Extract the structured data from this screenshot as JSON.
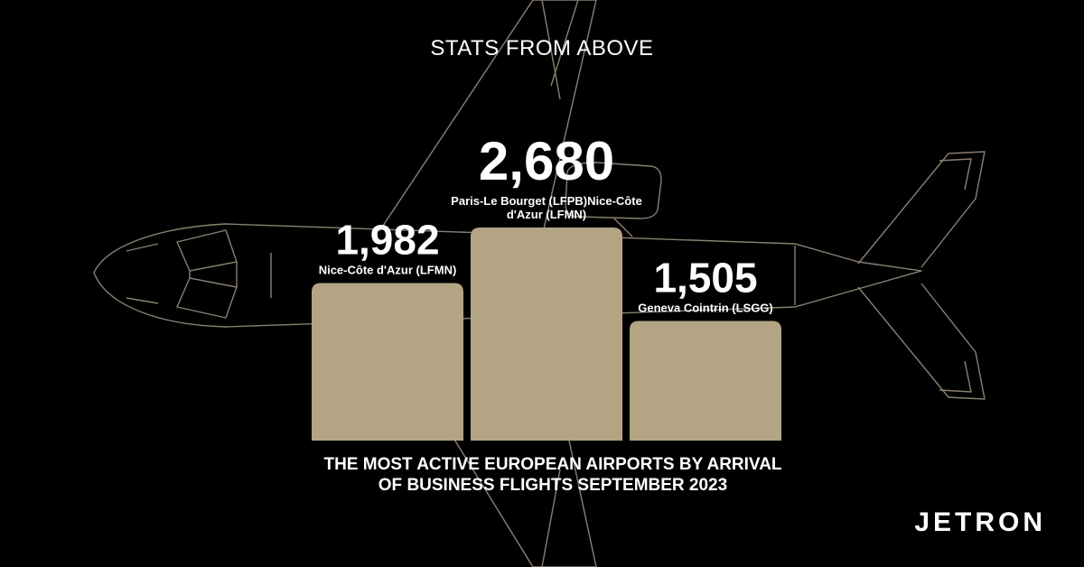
{
  "heading": "STATS FROM ABOVE",
  "caption": "THE MOST ACTIVE EUROPEAN AIRPORTS BY ARRIVAL OF BUSINESS FLIGHTS SEPTEMBER 2023",
  "logo": "JETRON",
  "colors": {
    "background": "#000000",
    "bar": "#b3a484",
    "jet_outline": "#8a8070",
    "text": "#ffffff"
  },
  "chart_data": {
    "type": "bar",
    "title": "",
    "xlabel": "",
    "ylabel": "",
    "ylim": [
      0,
      2680
    ],
    "grid": false,
    "legend": "none",
    "categories": [
      "Nice-Côte d'Azur (LFMN)",
      "Paris-Le Bourget (LFPB)Nice-Côte d'Azur (LFMN)",
      "Geneva Cointrin (LSGG)"
    ],
    "category_lines": [
      [
        "Nice-Côte d'Azur (LFMN)"
      ],
      [
        "Paris-Le Bourget (LFPB)Nice-Côte",
        "d'Azur (LFMN)"
      ],
      [
        "Geneva Cointrin (LSGG)"
      ]
    ],
    "values": [
      1982,
      2680,
      1505
    ],
    "value_labels": [
      "1,982",
      "2,680",
      "1,505"
    ]
  }
}
